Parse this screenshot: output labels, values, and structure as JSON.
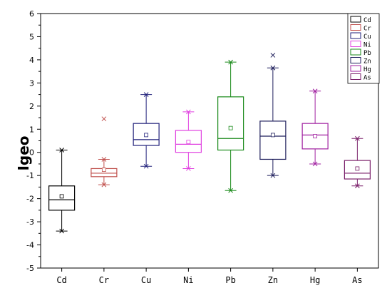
{
  "chart_data": {
    "type": "box",
    "ylabel": "Igeo",
    "ylim": [
      -5,
      6
    ],
    "yticks": [
      -5,
      -4,
      -3,
      -2,
      -1,
      0,
      1,
      2,
      3,
      4,
      5,
      6
    ],
    "categories": [
      "Cd",
      "Cr",
      "Cu",
      "Ni",
      "Pb",
      "Zn",
      "Hg",
      "As"
    ],
    "legend": {
      "placement": "top-right",
      "entries": [
        "Cd",
        "Cr",
        "Cu",
        "Ni",
        "Pb",
        "Zn",
        "Hg",
        "As"
      ]
    },
    "grid": false,
    "series": [
      {
        "name": "Cd",
        "color": "#000000",
        "min": -3.4,
        "q1": -2.5,
        "median": -2.05,
        "q3": -1.45,
        "max": 0.1,
        "mean": -1.9,
        "outliers_x": []
      },
      {
        "name": "Cr",
        "color": "#c0504d",
        "min": -1.4,
        "q1": -1.05,
        "median": -0.9,
        "q3": -0.7,
        "max": -0.3,
        "mean": -0.75,
        "outliers_x": [
          1.45
        ]
      },
      {
        "name": "Cu",
        "color": "#1f1f7a",
        "min": -0.6,
        "q1": 0.3,
        "median": 0.55,
        "q3": 1.25,
        "max": 2.5,
        "mean": 0.75,
        "outliers_x": []
      },
      {
        "name": "Ni",
        "color": "#e040e0",
        "min": -0.7,
        "q1": 0.0,
        "median": 0.35,
        "q3": 0.95,
        "max": 1.75,
        "mean": 0.45,
        "outliers_x": []
      },
      {
        "name": "Pb",
        "color": "#1a8a1a",
        "min": -1.65,
        "q1": 0.1,
        "median": 0.6,
        "q3": 2.4,
        "max": 3.9,
        "mean": 1.05,
        "outliers_x": []
      },
      {
        "name": "Zn",
        "color": "#1f1f5c",
        "min": -1.0,
        "q1": -0.3,
        "median": 0.7,
        "q3": 1.35,
        "max": 3.65,
        "mean": 0.75,
        "outliers_x": [
          4.2
        ]
      },
      {
        "name": "Hg",
        "color": "#a020a0",
        "min": -0.5,
        "q1": 0.15,
        "median": 0.75,
        "q3": 1.25,
        "max": 2.65,
        "mean": 0.7,
        "outliers_x": []
      },
      {
        "name": "As",
        "color": "#7a1f6a",
        "min": -1.45,
        "q1": -1.15,
        "median": -0.9,
        "q3": -0.35,
        "max": 0.6,
        "mean": -0.7,
        "outliers_x": []
      }
    ]
  }
}
